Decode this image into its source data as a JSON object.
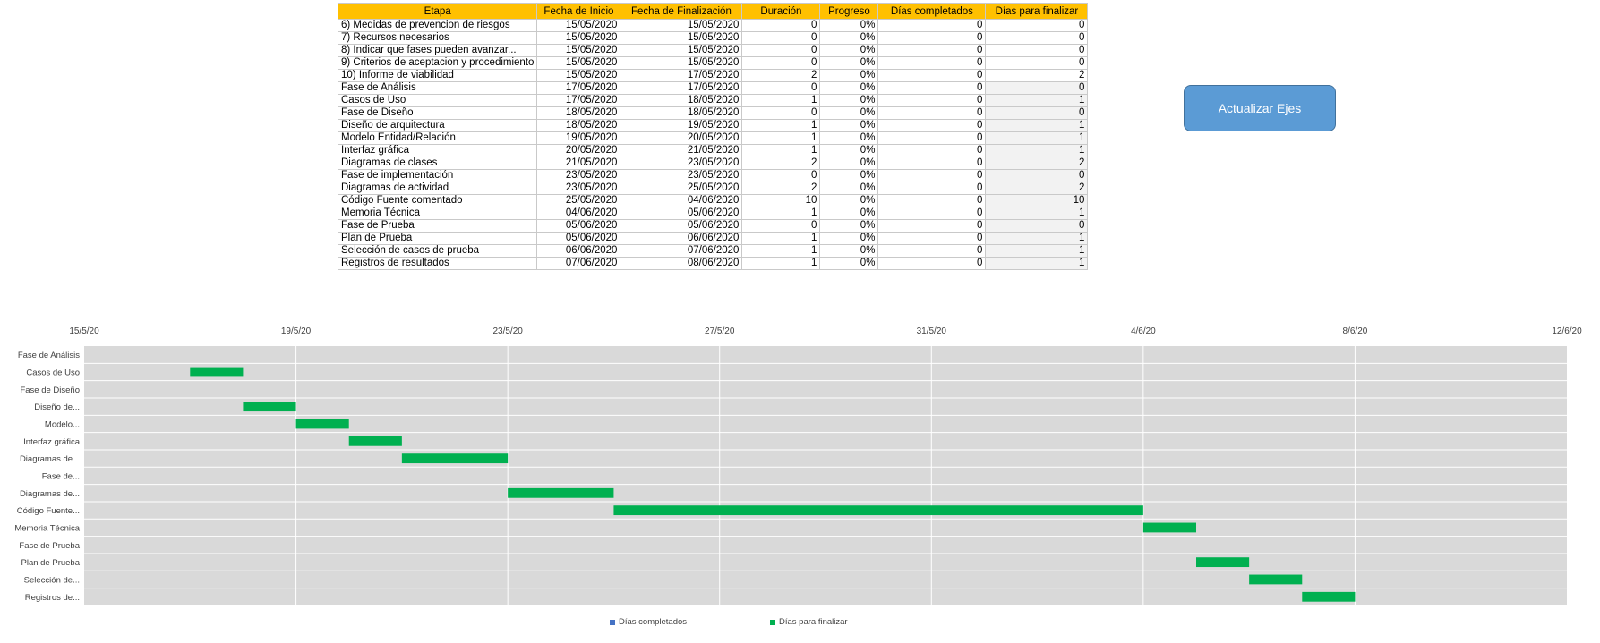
{
  "table": {
    "headers": [
      "Etapa",
      "Fecha de Inicio",
      "Fecha de Finalización",
      "Duración",
      "Progreso",
      "Días completados",
      "Días para finalizar"
    ],
    "rows": [
      [
        "6) Medidas de prevencion de riesgos",
        "15/05/2020",
        "15/05/2020",
        "0",
        "0%",
        "0",
        "0"
      ],
      [
        "7) Recursos necesarios",
        "15/05/2020",
        "15/05/2020",
        "0",
        "0%",
        "0",
        "0"
      ],
      [
        "8) Indicar que fases pueden avanzar...",
        "15/05/2020",
        "15/05/2020",
        "0",
        "0%",
        "0",
        "0"
      ],
      [
        "9) Criterios de aceptacion y procedimiento",
        "15/05/2020",
        "15/05/2020",
        "0",
        "0%",
        "0",
        "0"
      ],
      [
        "10) Informe de viabilidad",
        "15/05/2020",
        "17/05/2020",
        "2",
        "0%",
        "0",
        "2"
      ],
      [
        "Fase de Análisis",
        "17/05/2020",
        "17/05/2020",
        "0",
        "0%",
        "0",
        "0"
      ],
      [
        "Casos de Uso",
        "17/05/2020",
        "18/05/2020",
        "1",
        "0%",
        "0",
        "1"
      ],
      [
        "Fase de Diseño",
        "18/05/2020",
        "18/05/2020",
        "0",
        "0%",
        "0",
        "0"
      ],
      [
        "Diseño de arquitectura",
        "18/05/2020",
        "19/05/2020",
        "1",
        "0%",
        "0",
        "1"
      ],
      [
        "Modelo Entidad/Relación",
        "19/05/2020",
        "20/05/2020",
        "1",
        "0%",
        "0",
        "1"
      ],
      [
        "Interfaz gráfica",
        "20/05/2020",
        "21/05/2020",
        "1",
        "0%",
        "0",
        "1"
      ],
      [
        "Diagramas de clases",
        "21/05/2020",
        "23/05/2020",
        "2",
        "0%",
        "0",
        "2"
      ],
      [
        "Fase de implementación",
        "23/05/2020",
        "23/05/2020",
        "0",
        "0%",
        "0",
        "0"
      ],
      [
        "Diagramas de actividad",
        "23/05/2020",
        "25/05/2020",
        "2",
        "0%",
        "0",
        "2"
      ],
      [
        "Código Fuente comentado",
        "25/05/2020",
        "04/06/2020",
        "10",
        "0%",
        "0",
        "10"
      ],
      [
        "Memoria Técnica",
        "04/06/2020",
        "05/06/2020",
        "1",
        "0%",
        "0",
        "1"
      ],
      [
        "Fase de Prueba",
        "05/06/2020",
        "05/06/2020",
        "0",
        "0%",
        "0",
        "0"
      ],
      [
        "Plan de Prueba",
        "05/06/2020",
        "06/06/2020",
        "1",
        "0%",
        "0",
        "1"
      ],
      [
        "Selección de casos de prueba",
        "06/06/2020",
        "07/06/2020",
        "1",
        "0%",
        "0",
        "1"
      ],
      [
        "Registros de resultados",
        "07/06/2020",
        "08/06/2020",
        "1",
        "0%",
        "0",
        "1"
      ]
    ]
  },
  "button": {
    "label": "Actualizar Ejes"
  },
  "chart_data": {
    "type": "bar",
    "orientation": "horizontal-stacked",
    "x_tick_labels": [
      "15/5/20",
      "19/5/20",
      "23/5/20",
      "27/5/20",
      "31/5/20",
      "4/6/20",
      "8/6/20",
      "12/6/20"
    ],
    "xlim": [
      "2020-05-15",
      "2020-06-12"
    ],
    "grid": true,
    "legend_position": "bottom",
    "categories": [
      "Fase de Análisis",
      "Casos de Uso",
      "Fase de Diseño",
      "Diseño de...",
      "Modelo...",
      "Interfaz gráfica",
      "Diagramas de...",
      "Fase de...",
      "Diagramas de...",
      "Código Fuente...",
      "Memoria Técnica",
      "Fase de Prueba",
      "Plan de Prueba",
      "Selección de...",
      "Registros de..."
    ],
    "start": [
      "2020-05-17",
      "2020-05-17",
      "2020-05-18",
      "2020-05-18",
      "2020-05-19",
      "2020-05-20",
      "2020-05-21",
      "2020-05-23",
      "2020-05-23",
      "2020-05-25",
      "2020-06-04",
      "2020-06-05",
      "2020-06-05",
      "2020-06-06",
      "2020-06-07"
    ],
    "series": [
      {
        "name": "Días completados",
        "color": "#4472c4",
        "values": [
          0,
          0,
          0,
          0,
          0,
          0,
          0,
          0,
          0,
          0,
          0,
          0,
          0,
          0,
          0
        ]
      },
      {
        "name": "Días para finalizar",
        "color": "#00b050",
        "values": [
          0,
          1,
          0,
          1,
          1,
          1,
          2,
          0,
          2,
          10,
          1,
          0,
          1,
          1,
          1
        ]
      }
    ],
    "plot_bg": "#d9d9d9"
  }
}
